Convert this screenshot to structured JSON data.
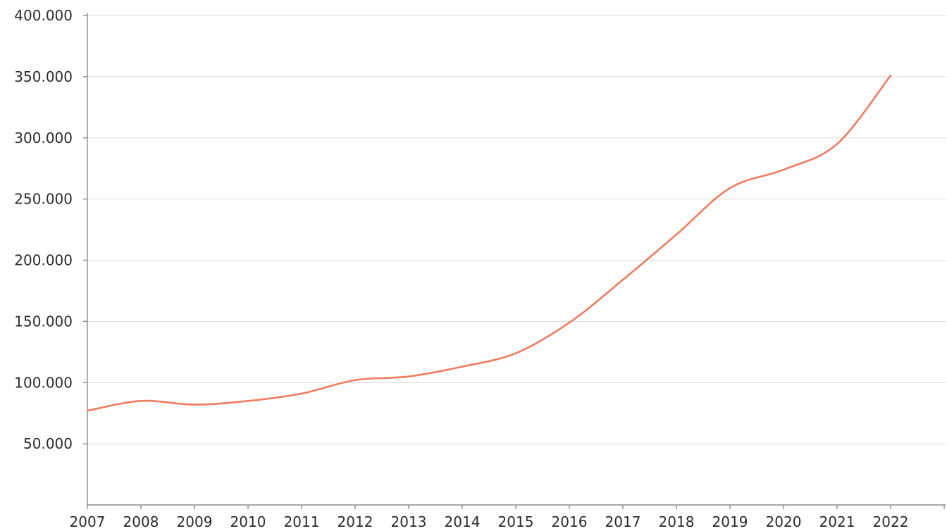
{
  "chart_data": {
    "type": "line",
    "title": "",
    "xlabel": "",
    "ylabel": "",
    "x": [
      "2007",
      "2008",
      "2009",
      "2010",
      "2011",
      "2012",
      "2013",
      "2014",
      "2015",
      "2016",
      "2017",
      "2018",
      "2019",
      "2020",
      "2021",
      "2022"
    ],
    "series": [
      {
        "values": [
          77000,
          85000,
          82000,
          85000,
          91000,
          102000,
          105000,
          113000,
          124000,
          149000,
          184000,
          221000,
          259000,
          274000,
          295000,
          351000
        ],
        "color": "#f07b5f"
      }
    ],
    "ylim": [
      0,
      400000
    ],
    "y_ticks": [
      50000,
      100000,
      150000,
      200000,
      250000,
      300000,
      350000,
      400000
    ],
    "y_tick_labels": [
      "50.000",
      "100.000",
      "150.000",
      "200.000",
      "250.000",
      "300.000",
      "350.000",
      "400.000"
    ],
    "grid": true,
    "legend": "none",
    "axis_color": "#8c8c8c",
    "grid_color": "#d9d9d9"
  }
}
